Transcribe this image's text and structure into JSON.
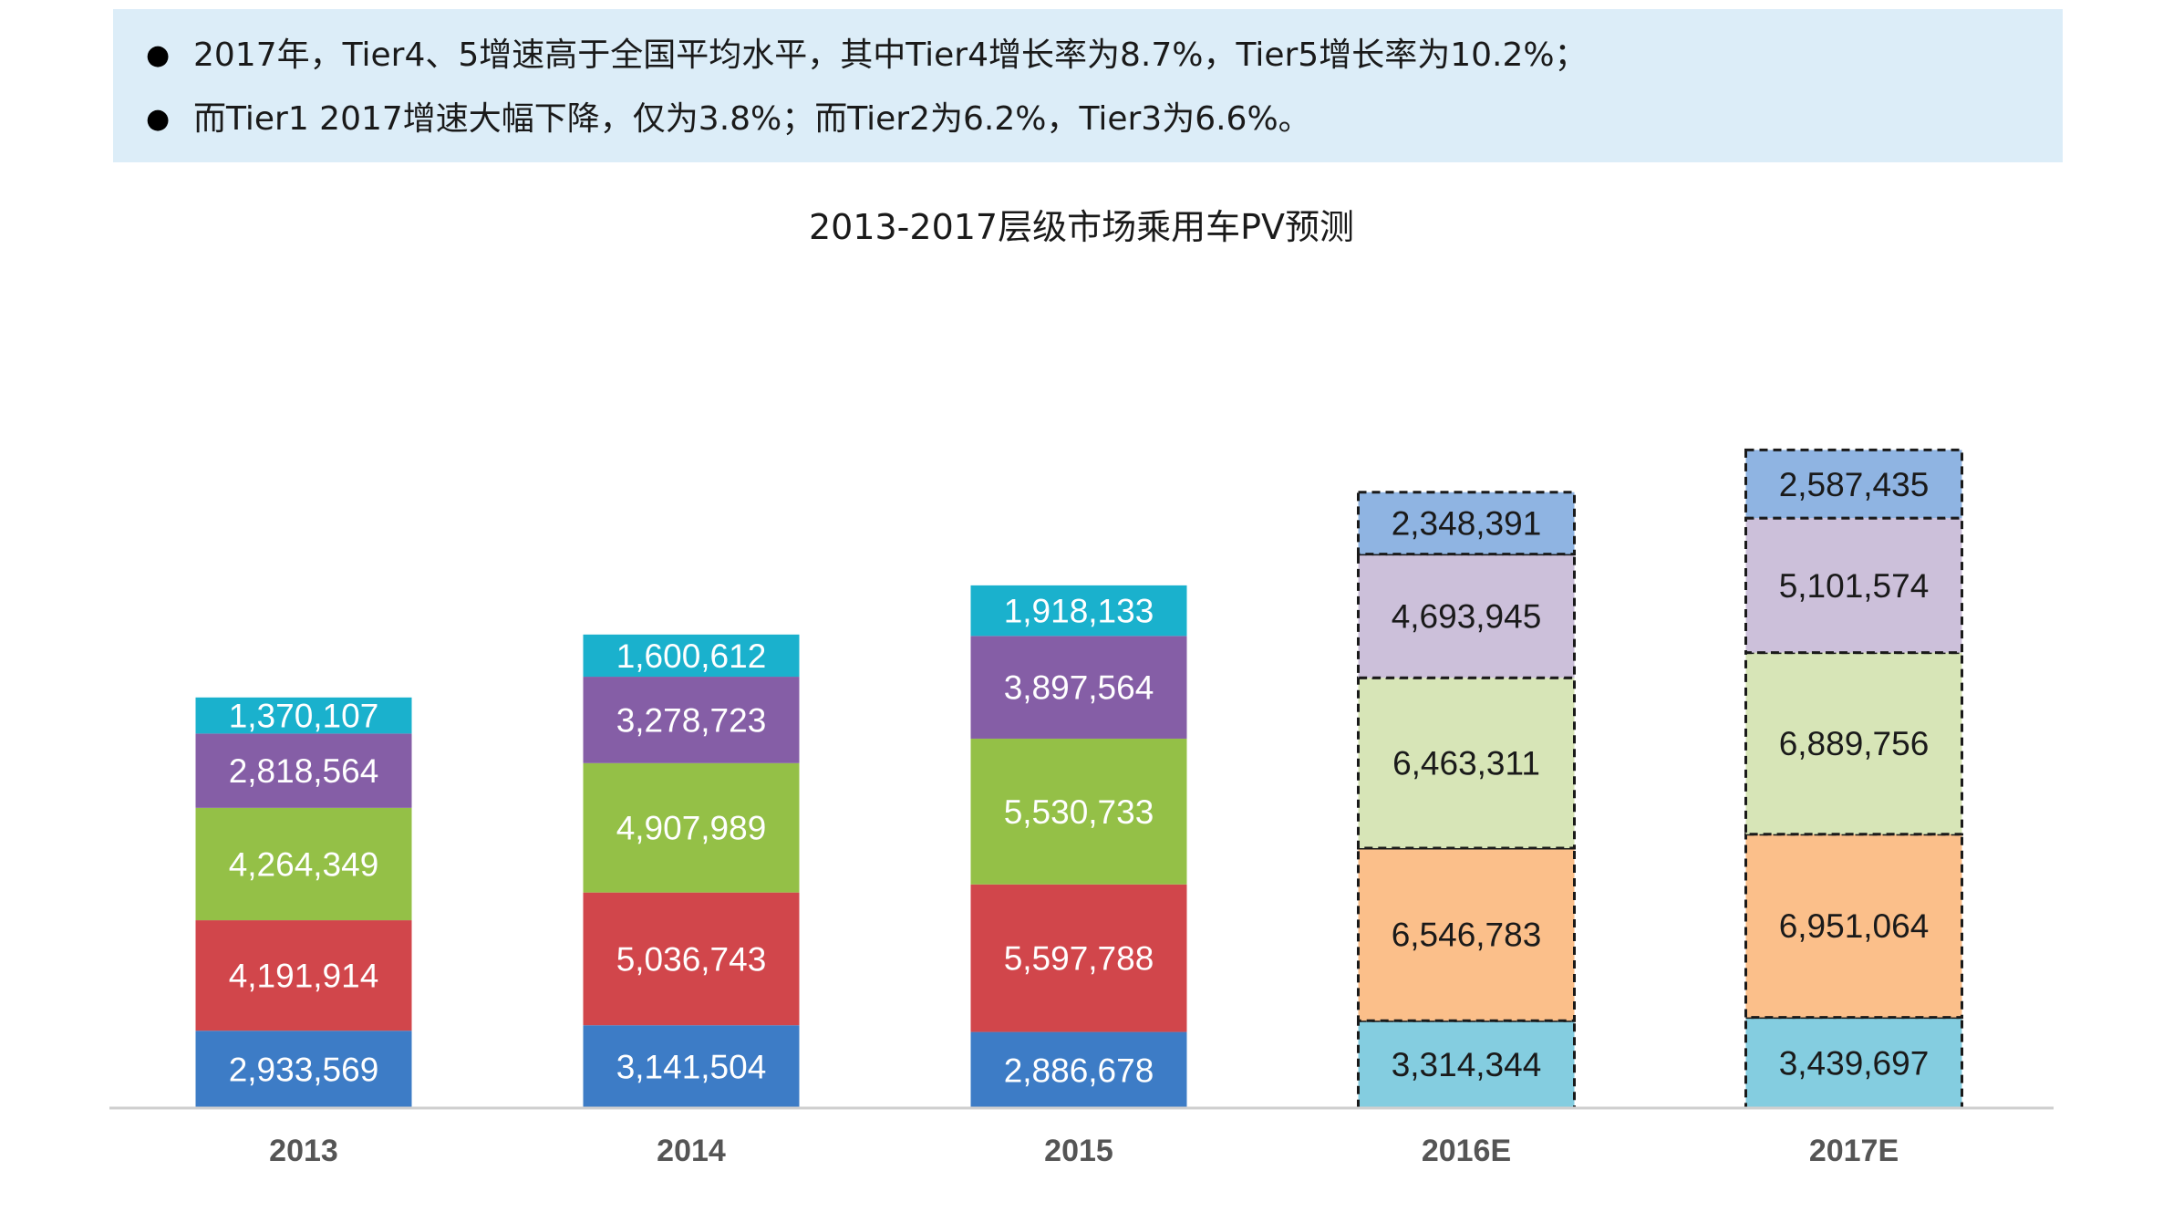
{
  "notes": [
    "2017年，Tier4、5增速高于全国平均水平，其中Tier4增长率为8.7%，Tier5增长率为10.2%；",
    "而Tier1 2017增速大幅下降，仅为3.8%；而Tier2为6.2%，Tier3为6.6%。"
  ],
  "bullet": "●",
  "chart_data": {
    "type": "bar",
    "stacked": true,
    "title": "2013-2017层级市场乘用车PV预测",
    "categories": [
      "2013",
      "2014",
      "2015",
      "2016E",
      "2017E"
    ],
    "xlabel": "",
    "ylabel": "",
    "legend": "none",
    "grid": false,
    "forecast_categories": [
      "2016E",
      "2017E"
    ],
    "series": [
      {
        "values": [
          2933569,
          3141504,
          2886678,
          3314344,
          3439697
        ],
        "color": "#3d7cc6",
        "forecast_color": "#84cde0"
      },
      {
        "values": [
          4191914,
          5036743,
          5597788,
          6546783,
          6951064
        ],
        "color": "#d1464b",
        "forecast_color": "#fbbf8a"
      },
      {
        "values": [
          4264349,
          4907989,
          5530733,
          6463311,
          6889756
        ],
        "color": "#94c047",
        "forecast_color": "#d7e5b7"
      },
      {
        "values": [
          2818564,
          3278723,
          3897564,
          4693945,
          5101574
        ],
        "color": "#855ea6",
        "forecast_color": "#ccc0da"
      },
      {
        "values": [
          1370107,
          1600612,
          1918133,
          2348391,
          2587435
        ],
        "color": "#1ab1cd",
        "forecast_color": "#8fb4e2"
      }
    ],
    "labels": [
      [
        "2,933,569",
        "3,141,504",
        "2,886,678",
        "3,314,344",
        "3,439,697"
      ],
      [
        "4,191,914",
        "5,036,743",
        "5,597,788",
        "6,546,783",
        "6,951,064"
      ],
      [
        "4,264,349",
        "4,907,989",
        "5,530,733",
        "6,463,311",
        "6,889,756"
      ],
      [
        "2,818,564",
        "3,278,723",
        "3,897,564",
        "4,693,945",
        "5,101,574"
      ],
      [
        "1,370,107",
        "1,600,612",
        "1,918,133",
        "2,348,391",
        "2,587,435"
      ]
    ]
  }
}
